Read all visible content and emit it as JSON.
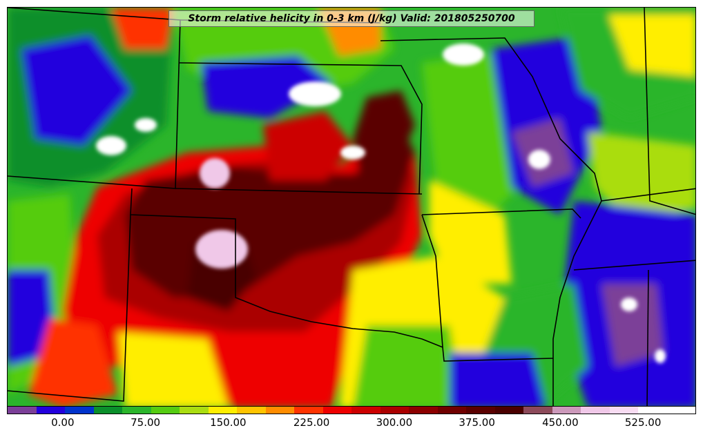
{
  "title": "Storm relative helicity in 0-3 km (J/kg) Valid: 201805250700",
  "colorbar": {
    "colors": [
      "#7b3f98",
      "#2200dd",
      "#0033cc",
      "#0a8f2b",
      "#2bb52b",
      "#55cc11",
      "#aadd11",
      "#ffee00",
      "#ffc400",
      "#ff8c00",
      "#ff3300",
      "#ee0000",
      "#cc0000",
      "#aa0000",
      "#8c0000",
      "#700000",
      "#5a0000",
      "#4a0000",
      "#8c4a5a",
      "#cc99bb",
      "#f0c8e8",
      "#f8dcf2",
      "#ffffff",
      "#ffffff"
    ],
    "tick_labels": [
      "0.00",
      "75.00",
      "150.00",
      "225.00",
      "300.00",
      "375.00",
      "450.00",
      "525.00"
    ]
  },
  "map": {
    "palette": {
      "purple": "#7b3f98",
      "blue": "#2200dd",
      "green": "#0a8f2b",
      "lightgreen": "#55cc11",
      "yellow": "#ffee00",
      "orange": "#ff8c00",
      "red": "#ee0000",
      "darkred": "#8c0000",
      "maroon": "#5a0000",
      "pink": "#f0c8e8",
      "white": "#ffffff"
    }
  }
}
